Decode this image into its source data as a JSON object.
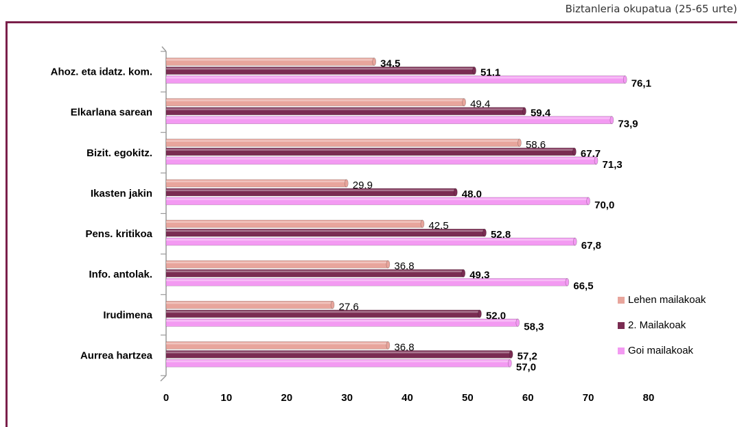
{
  "header": {
    "title": "Biztanleria okupatua (25-65 urte)",
    "rule_color": "#7a1f4a"
  },
  "chart_data": {
    "type": "bar",
    "orientation": "horizontal",
    "categories": [
      "Ahoz. eta idatz. kom.",
      "Elkarlana sarean",
      "Bizit. egokitz.",
      "Ikasten jakin",
      "Pens. kritikoa",
      "Info. antolak.",
      "Irudimena",
      "Aurrea hartzea"
    ],
    "series": [
      {
        "name": "Lehen mailakoak",
        "color": "#e8a59c",
        "values": [
          34.5,
          49.4,
          58.6,
          29.9,
          42.5,
          36.8,
          27.6,
          36.8
        ],
        "labels": [
          "34,5",
          "49,4",
          "58,6",
          "29,9",
          "42,5",
          "36,8",
          "27,6",
          "36,8"
        ],
        "bold": [
          true,
          false,
          false,
          false,
          false,
          false,
          false,
          false
        ]
      },
      {
        "name": "2. Mailakoak",
        "color": "#7a2c52",
        "values": [
          51.1,
          59.4,
          67.7,
          48.0,
          52.8,
          49.3,
          52.0,
          57.2
        ],
        "labels": [
          "51,1",
          "59,4",
          "67,7",
          "48,0",
          "52,8",
          "49,3",
          "52,0",
          "57,2"
        ],
        "bold": [
          true,
          true,
          true,
          true,
          true,
          true,
          true,
          true
        ]
      },
      {
        "name": "Goi mailakoak",
        "color": "#f39af2",
        "values": [
          76.1,
          73.9,
          71.3,
          70.0,
          67.8,
          66.5,
          58.3,
          57.0
        ],
        "labels": [
          "76,1",
          "73,9",
          "71,3",
          "70,0",
          "67,8",
          "66,5",
          "58,3",
          "57,0"
        ],
        "bold": [
          true,
          true,
          true,
          true,
          true,
          true,
          true,
          true
        ]
      }
    ],
    "xlim": [
      0,
      80
    ],
    "xticks": [
      "0",
      "10",
      "20",
      "30",
      "40",
      "50",
      "60",
      "70",
      "80"
    ],
    "grid": false,
    "legend_position": "right"
  }
}
